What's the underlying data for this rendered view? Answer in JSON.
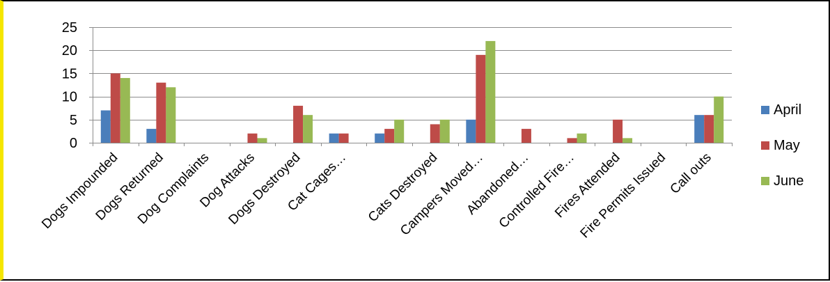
{
  "chart_data": {
    "type": "bar",
    "title": "",
    "xlabel": "",
    "ylabel": "",
    "ylim": [
      0,
      25
    ],
    "yticks": [
      0,
      5,
      10,
      15,
      20,
      25
    ],
    "grid": true,
    "legend_position": "right",
    "categories": [
      "Dogs Impounded",
      "Dogs Returned",
      "Dog Complaints",
      "Dog Attacks",
      "Dogs Destroyed",
      "Cat Cages…",
      "",
      "Cats Destroyed",
      "Campers Moved…",
      "Abandoned…",
      "Controlled Fire…",
      "Fires Attended",
      "Fire Permits Issued",
      "Call outs"
    ],
    "series": [
      {
        "name": "April",
        "color": "#4a7ebb",
        "values": [
          7,
          3,
          0,
          0,
          0,
          2,
          2,
          0,
          5,
          0,
          0,
          0,
          0,
          6
        ]
      },
      {
        "name": "May",
        "color": "#be4b48",
        "values": [
          15,
          13,
          0,
          2,
          8,
          2,
          3,
          4,
          19,
          3,
          1,
          5,
          0,
          6
        ]
      },
      {
        "name": "June",
        "color": "#98b954",
        "values": [
          14,
          12,
          0,
          1,
          6,
          0,
          5,
          5,
          22,
          0,
          2,
          1,
          0,
          10
        ]
      }
    ]
  }
}
